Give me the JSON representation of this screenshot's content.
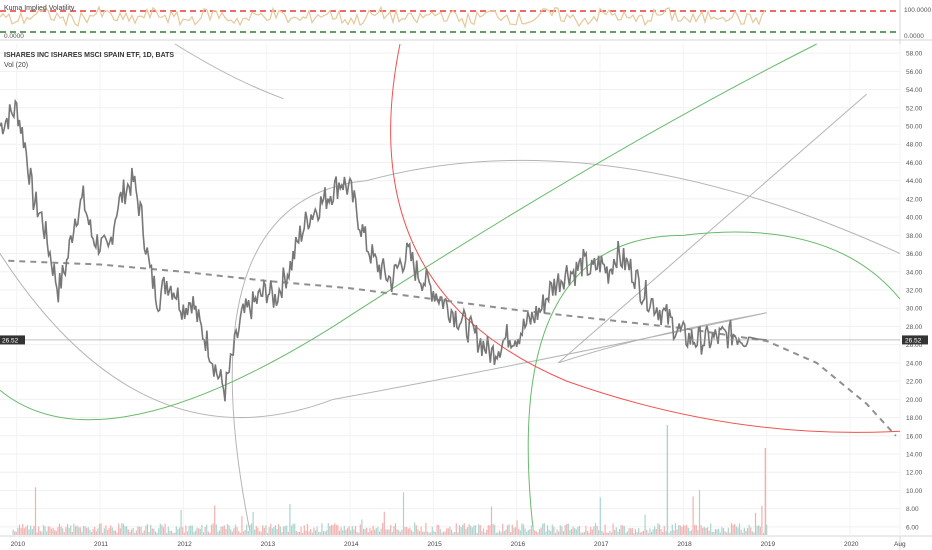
{
  "indicator_panel": {
    "title": "Kuma Implied Volatility",
    "scale_top_label": "100.0000",
    "scale_bottom_label": "0.0000"
  },
  "main_panel": {
    "title": "ISHARES INC ISHARES MSCI SPAIN ETF, 1D, BATS",
    "volume_label": "Vol (20)",
    "last_price_label": "26.52"
  },
  "colors": {
    "price": "#777777",
    "trend_dashed": "#8f8f8f",
    "red_arc": "#ef5350",
    "green_arc": "#66bb6a",
    "gray_arc": "#b5b5b5",
    "vol_up": "#a8d5cf",
    "vol_down": "#f4b0b0",
    "iv_line": "#e8c79a",
    "iv_top": "#e53935",
    "iv_bottom": "#2e7d32"
  },
  "chart_data": {
    "type": "line",
    "title": "ISHARES INC ISHARES MSCI SPAIN ETF, 1D, BATS",
    "ylim": [
      5,
      59
    ],
    "xlim": [
      2009.8,
      2020.6
    ],
    "y_ticks": [
      "6.00",
      "8.00",
      "10.00",
      "12.00",
      "14.00",
      "16.00",
      "18.00",
      "20.00",
      "22.00",
      "24.00",
      "26.00",
      "28.00",
      "30.00",
      "32.00",
      "34.00",
      "36.00",
      "38.00",
      "40.00",
      "42.00",
      "44.00",
      "46.00",
      "48.00",
      "50.00",
      "52.00",
      "54.00",
      "56.00",
      "58.00"
    ],
    "x_ticks": [
      {
        "label": "2010",
        "x": 2010
      },
      {
        "label": "2011",
        "x": 2011
      },
      {
        "label": "2012",
        "x": 2012
      },
      {
        "label": "2013",
        "x": 2013
      },
      {
        "label": "2014",
        "x": 2014
      },
      {
        "label": "2015",
        "x": 2015
      },
      {
        "label": "2016",
        "x": 2016
      },
      {
        "label": "2017",
        "x": 2017
      },
      {
        "label": "2018",
        "x": 2018
      },
      {
        "label": "2019",
        "x": 2019
      },
      {
        "label": "2020",
        "x": 2020
      },
      {
        "label": "Aug",
        "x": 2020.6
      }
    ],
    "grid": true,
    "series": [
      {
        "type": "line",
        "x": [
          2009.8,
          2009.9,
          2010.0,
          2010.1,
          2010.2,
          2010.3,
          2010.4,
          2010.5,
          2010.6,
          2010.7,
          2010.8,
          2010.9,
          2011.0,
          2011.1,
          2011.2,
          2011.3,
          2011.4,
          2011.5,
          2011.6,
          2011.7,
          2011.8,
          2011.9,
          2012.0,
          2012.1,
          2012.2,
          2012.3,
          2012.4,
          2012.5,
          2012.6,
          2012.7,
          2012.8,
          2012.9,
          2013.0,
          2013.1,
          2013.2,
          2013.3,
          2013.4,
          2013.5,
          2013.6,
          2013.7,
          2013.8,
          2013.9,
          2014.0,
          2014.1,
          2014.2,
          2014.3,
          2014.4,
          2014.5,
          2014.6,
          2014.7,
          2014.8,
          2014.9,
          2015.0,
          2015.1,
          2015.2,
          2015.3,
          2015.4,
          2015.5,
          2015.6,
          2015.7,
          2015.8,
          2015.9,
          2016.0,
          2016.1,
          2016.2,
          2016.3,
          2016.4,
          2016.5,
          2016.6,
          2016.7,
          2016.8,
          2016.9,
          2017.0,
          2017.1,
          2017.2,
          2017.3,
          2017.4,
          2017.5,
          2017.6,
          2017.7,
          2017.8,
          2017.9,
          2018.0,
          2018.1,
          2018.2,
          2018.3,
          2018.4,
          2018.5,
          2018.6,
          2018.7,
          2018.8,
          2018.9,
          2019.0
        ],
        "y": [
          50,
          51,
          52,
          48,
          42,
          40,
          36,
          32,
          35,
          40,
          42,
          38,
          37,
          36,
          41,
          43,
          44,
          40,
          34,
          31,
          33,
          32,
          30,
          31,
          28,
          26,
          23,
          21,
          25,
          29,
          30,
          31,
          32,
          31,
          33,
          35,
          38,
          40,
          41,
          42,
          43,
          44,
          43,
          40,
          37,
          35,
          34,
          33,
          35,
          36,
          34,
          33,
          32,
          31,
          30,
          29,
          28,
          27,
          26,
          25,
          26,
          27,
          27,
          28,
          29,
          30,
          32,
          33,
          34,
          34,
          35,
          34,
          35,
          34,
          36,
          35,
          34,
          32,
          31,
          30,
          29,
          28,
          27,
          26.6,
          26.5,
          26.52,
          26.7,
          27,
          27.2,
          27,
          26.8,
          26.6,
          26.52
        ]
      }
    ],
    "iv_ylim": [
      0,
      100
    ],
    "last_price": 26.52
  }
}
